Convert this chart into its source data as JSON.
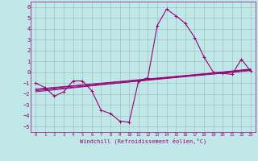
{
  "xlabel": "Windchill (Refroidissement éolien,°C)",
  "xlim": [
    -0.5,
    23.5
  ],
  "ylim": [
    -5.5,
    6.5
  ],
  "yticks": [
    -5,
    -4,
    -3,
    -2,
    -1,
    0,
    1,
    2,
    3,
    4,
    5,
    6
  ],
  "xticks": [
    0,
    1,
    2,
    3,
    4,
    5,
    6,
    7,
    8,
    9,
    10,
    11,
    12,
    13,
    14,
    15,
    16,
    17,
    18,
    19,
    20,
    21,
    22,
    23
  ],
  "bg_color": "#c0e8e8",
  "line_color": "#990077",
  "curve1_x": [
    0,
    1,
    2,
    3,
    4,
    5,
    6,
    7,
    8,
    9,
    10,
    11,
    12,
    13,
    14,
    15,
    16,
    17,
    18,
    19,
    20,
    21,
    22,
    23
  ],
  "curve1_y": [
    -1.0,
    -1.4,
    -2.2,
    -1.8,
    -0.8,
    -0.8,
    -1.7,
    -3.5,
    -3.8,
    -4.5,
    -4.6,
    -0.8,
    -0.5,
    4.3,
    5.8,
    5.2,
    4.5,
    3.2,
    1.4,
    0.0,
    -0.1,
    -0.2,
    1.2,
    0.1
  ],
  "curve2_x": [
    0,
    23
  ],
  "curve2_y": [
    -1.6,
    0.2
  ],
  "curve3_x": [
    0,
    23
  ],
  "curve3_y": [
    -1.8,
    0.3
  ],
  "curve4_x": [
    0,
    23
  ],
  "curve4_y": [
    -1.7,
    0.15
  ],
  "curve5_x": [
    0,
    23
  ],
  "curve5_y": [
    -1.55,
    0.25
  ]
}
